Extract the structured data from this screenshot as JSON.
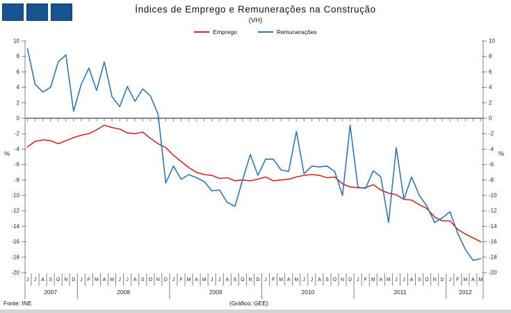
{
  "header": {
    "title": "Índices de Emprego e Remunerações na Construção",
    "subtitle": "(VH)",
    "logo": {
      "count": 3,
      "color": "#15548f",
      "border_color": "#0b3e6e"
    }
  },
  "legend": [
    {
      "label": "Emprego",
      "color": "#cc2929"
    },
    {
      "label": "Remunerações",
      "color": "#2e75b6"
    }
  ],
  "footer": {
    "source": "Fonte: INE",
    "credit": "(Gráfico: GEE)"
  },
  "chart_data": {
    "type": "line",
    "title": "Índices de Emprego e Remunerações na Construção",
    "subtitle": "(VH)",
    "ylabel_left": "%",
    "ylabel_right": "%",
    "ylim": [
      -20,
      10
    ],
    "ytick_step": 2,
    "grid": false,
    "legend_position": "top-center",
    "axis_color": "#808080",
    "zero_line_color": "#404040",
    "text_color": "#262626",
    "years": [
      {
        "label": "2007",
        "months": [
          "J",
          "J",
          "A",
          "S",
          "O",
          "N",
          "D"
        ]
      },
      {
        "label": "2008",
        "months": [
          "J",
          "F",
          "M",
          "A",
          "M",
          "J",
          "J",
          "A",
          "S",
          "O",
          "N",
          "D"
        ]
      },
      {
        "label": "2009",
        "months": [
          "J",
          "F",
          "M",
          "A",
          "M",
          "J",
          "J",
          "A",
          "S",
          "O",
          "N",
          "D"
        ]
      },
      {
        "label": "2010",
        "months": [
          "J",
          "F",
          "M",
          "A",
          "M",
          "J",
          "J",
          "A",
          "S",
          "O",
          "N",
          "D"
        ]
      },
      {
        "label": "2011",
        "months": [
          "J",
          "F",
          "M",
          "A",
          "M",
          "J",
          "J",
          "A",
          "S",
          "O",
          "N",
          "D"
        ]
      },
      {
        "label": "2012",
        "months": [
          "J",
          "F",
          "M",
          "A",
          "M"
        ]
      }
    ],
    "series": [
      {
        "name": "Emprego",
        "color": "#cc2929",
        "values": [
          -3.7,
          -3.0,
          -2.8,
          -2.9,
          -3.3,
          -2.9,
          -2.5,
          -2.2,
          -2.0,
          -1.5,
          -0.9,
          -1.2,
          -1.4,
          -1.9,
          -2.0,
          -1.8,
          -2.6,
          -3.3,
          -3.8,
          -4.8,
          -5.6,
          -6.4,
          -7.0,
          -7.3,
          -7.4,
          -7.8,
          -7.7,
          -8.1,
          -8.0,
          -8.1,
          -7.9,
          -7.6,
          -8.1,
          -8.0,
          -7.9,
          -7.6,
          -7.4,
          -7.3,
          -7.4,
          -7.7,
          -7.6,
          -8.5,
          -8.9,
          -9.0,
          -9.0,
          -8.6,
          -9.3,
          -9.7,
          -9.9,
          -10.5,
          -10.6,
          -11.2,
          -11.7,
          -12.8,
          -13.3,
          -13.3,
          -14.4,
          -15.0,
          -15.5,
          -16.0
        ]
      },
      {
        "name": "Remunerações",
        "color": "#2e75b6",
        "values": [
          9.0,
          4.4,
          3.4,
          4.0,
          7.3,
          8.2,
          0.9,
          4.4,
          6.5,
          3.6,
          7.3,
          2.8,
          1.5,
          4.1,
          2.2,
          3.8,
          2.9,
          0.5,
          -8.4,
          -6.2,
          -7.9,
          -7.3,
          -7.7,
          -8.2,
          -9.4,
          -9.3,
          -10.9,
          -11.4,
          -8.0,
          -4.7,
          -7.4,
          -5.3,
          -5.3,
          -6.7,
          -6.9,
          -1.7,
          -7.2,
          -6.2,
          -6.3,
          -6.2,
          -6.9,
          -10.0,
          -0.9,
          -8.9,
          -9.1,
          -6.8,
          -7.6,
          -13.5,
          -3.8,
          -10.5,
          -7.6,
          -10.0,
          -11.4,
          -13.5,
          -12.9,
          -12.1,
          -14.9,
          -17.0,
          -18.4,
          -18.2
        ]
      }
    ]
  }
}
